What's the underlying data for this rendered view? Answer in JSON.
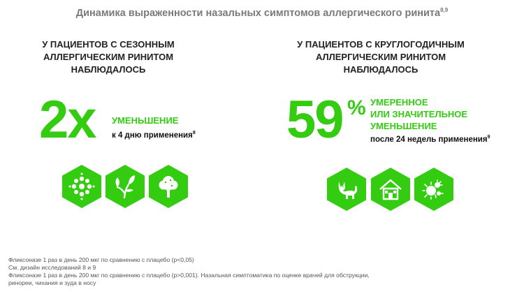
{
  "title": "Динамика выраженности назальных симптомов аллергического ринита",
  "title_sup": "8,9",
  "left": {
    "heading": [
      "У ПАЦИЕНТОВ С СЕЗОННЫМ",
      "АЛЛЕРГИЧЕСКИМ РИНИТОМ",
      "НАБЛЮДАЛОСЬ"
    ],
    "big_value": "2x",
    "green_label": "УМЕНЬШЕНИЕ",
    "black_label": "к 4 дню применения",
    "black_sup": "8",
    "icons": [
      "flower-icon",
      "leaves-icon",
      "tree-icon"
    ]
  },
  "right": {
    "heading": [
      "У ПАЦИЕНТОВ С КРУГЛОГОДИЧНЫМ",
      "АЛЛЕРГИЧЕСКИМ РИНИТОМ",
      "НАБЛЮДАЛОСЬ"
    ],
    "big_value": "59",
    "percent": "%",
    "green_label": [
      "УМЕРЕННОЕ",
      "ИЛИ ЗНАЧИТЕЛЬНОЕ",
      "УМЕНЬШЕНИЕ"
    ],
    "black_label": "после 24 недель применения",
    "black_sup": "9",
    "icons": [
      "cat-icon",
      "house-icon",
      "dust-mite-icon"
    ]
  },
  "footnotes": [
    "Фликсоназе 1 раз в день 200 мкг по сравнению с плацебо (p<0,05)",
    "См. дизайн исследований 8 и 9",
    "Фликсоназе 1 раз в день 200 мкг по сравнению с плацебо (p>0,001). Назальная симптоматика по оценке врачей для обструкции,",
    "ринореи, чихания и зуда в носу"
  ],
  "colors": {
    "accent": "#33cc11",
    "title": "#7a7a7a",
    "text": "#222222"
  }
}
